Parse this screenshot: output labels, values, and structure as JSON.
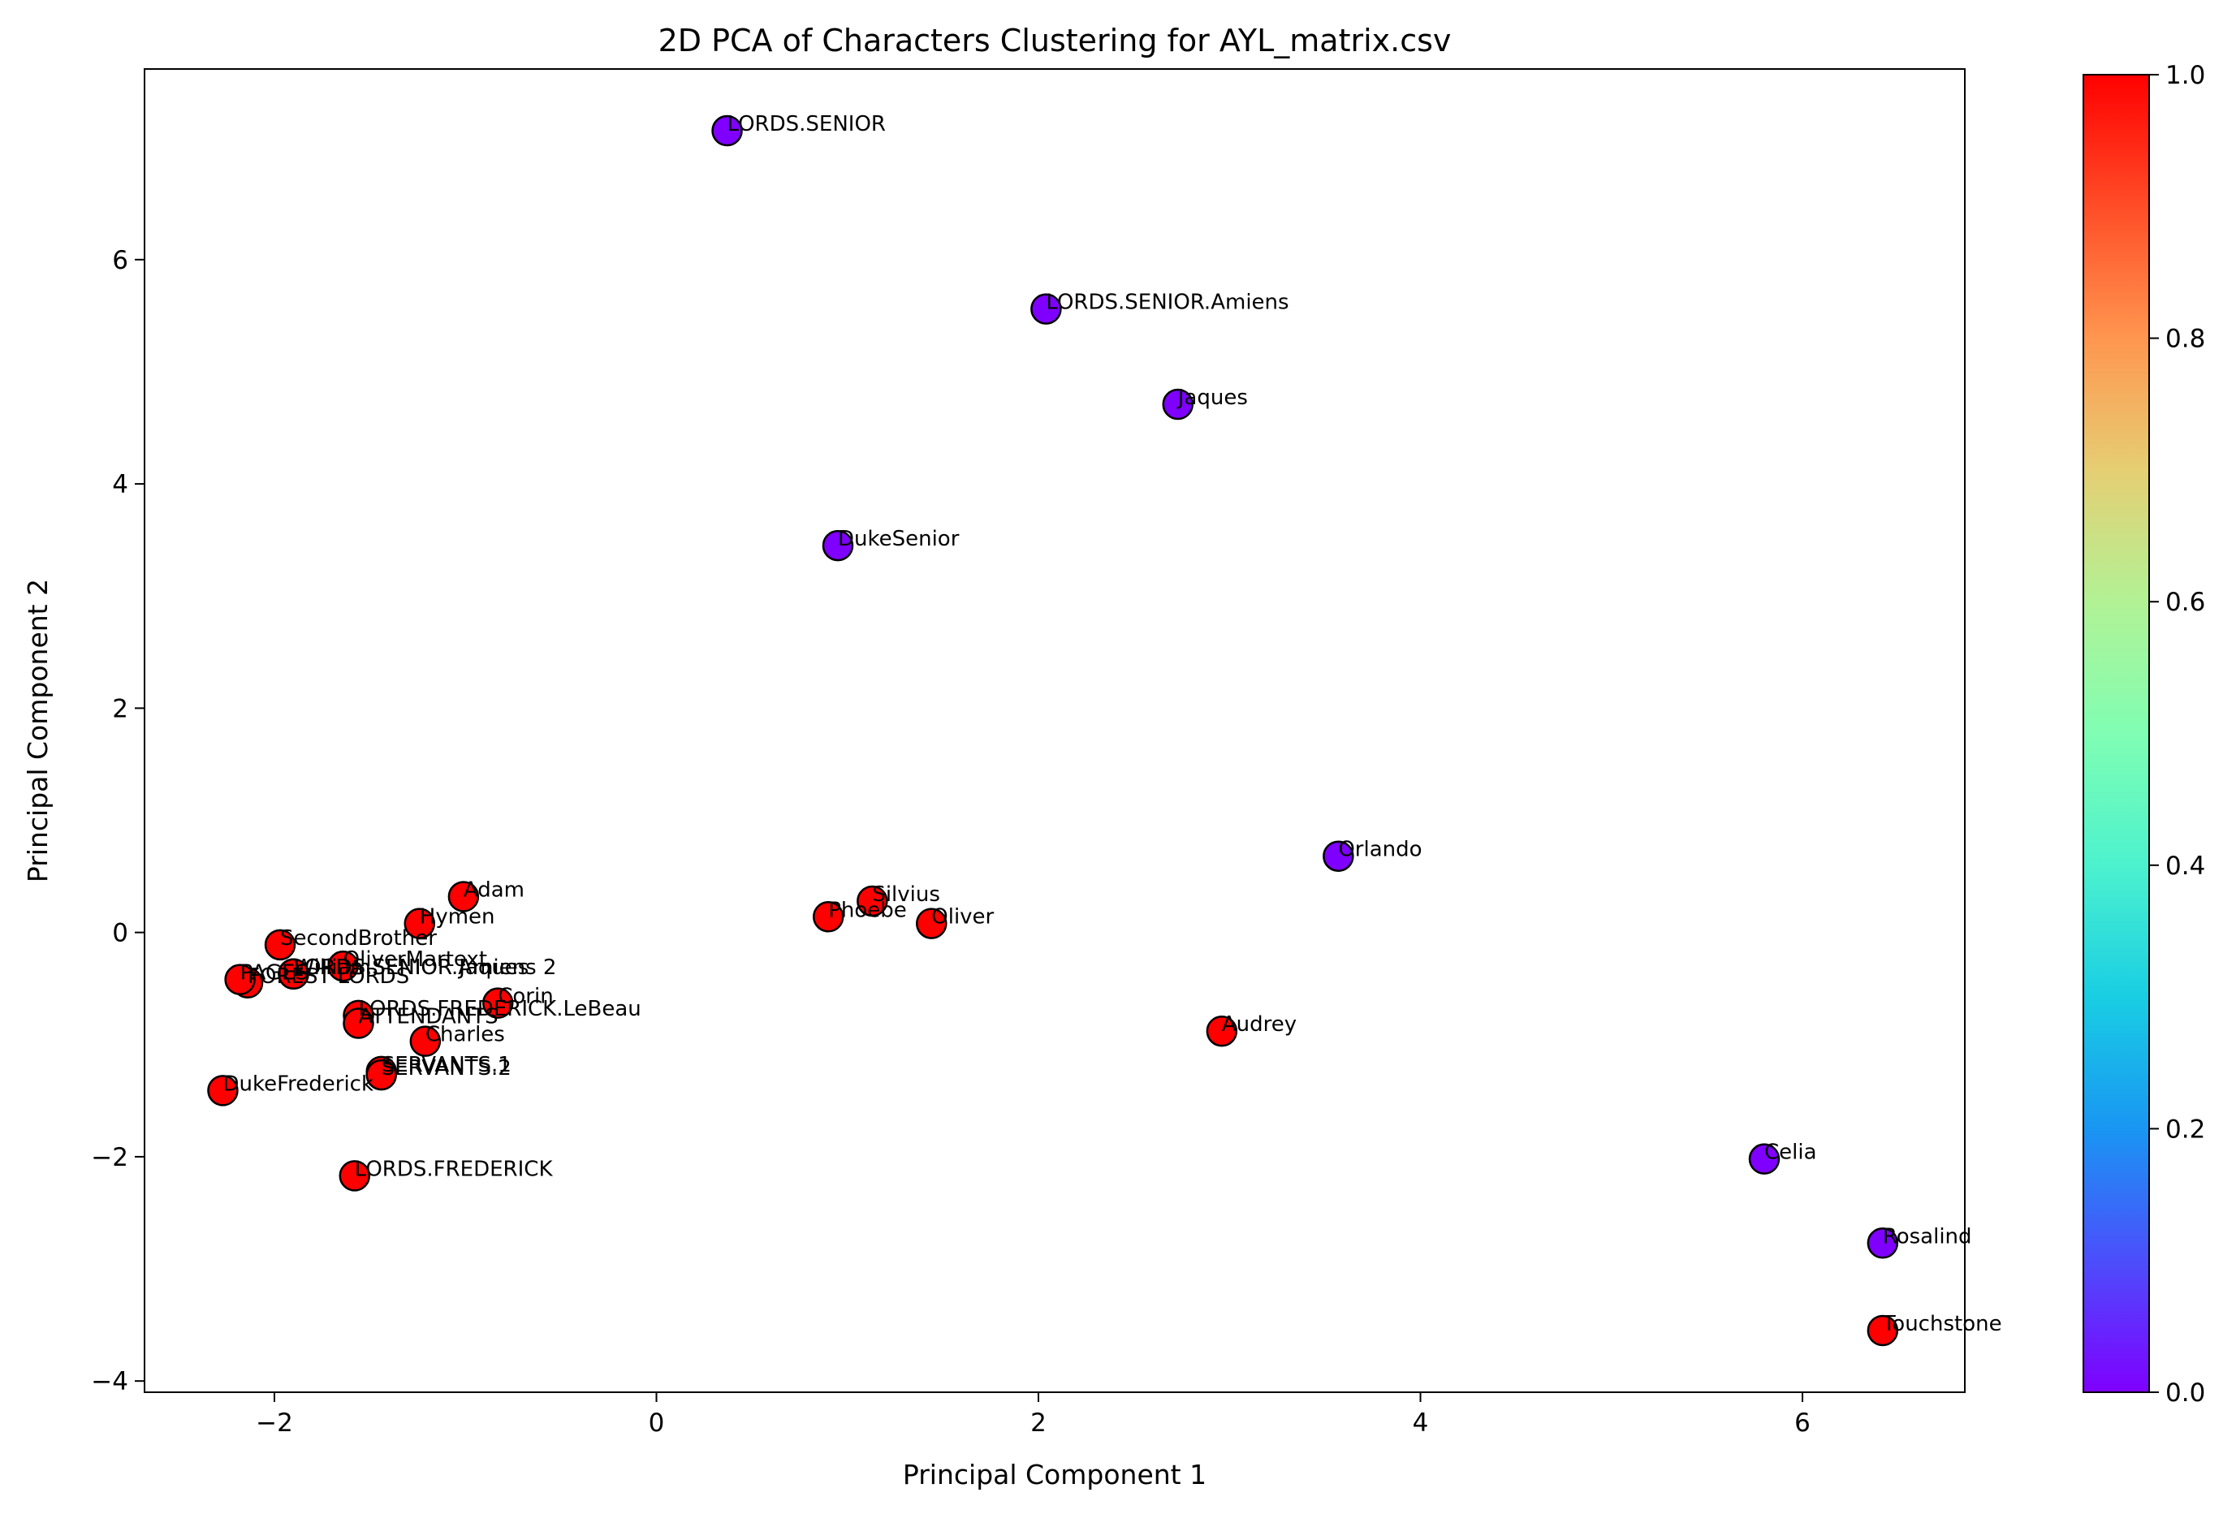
{
  "chart_data": {
    "type": "scatter",
    "title": "2D PCA of Characters Clustering for AYL_matrix.csv",
    "xlabel": "Principal Component 1",
    "ylabel": "Principal Component 2",
    "xlim": [
      -2.68,
      6.85
    ],
    "ylim": [
      -4.1,
      7.7
    ],
    "xticks": [
      -2,
      0,
      2,
      4,
      6
    ],
    "yticks": [
      -4,
      -2,
      0,
      2,
      4,
      6
    ],
    "grid": false,
    "colormap": "rainbow",
    "colorbar": {
      "min": 0.0,
      "max": 1.0,
      "ticks": [
        "0.0",
        "0.2",
        "0.4",
        "0.6",
        "0.8",
        "1.0"
      ]
    },
    "cluster_colors": {
      "0": "#7f00ff",
      "1": "#ff0000"
    },
    "points": [
      {
        "label": "LORDS.SENIOR",
        "x": 0.37,
        "y": 7.15,
        "cluster": 0
      },
      {
        "label": "LORDS.SENIOR.Amiens",
        "x": 2.04,
        "y": 5.56,
        "cluster": 0
      },
      {
        "label": "Jaques",
        "x": 2.73,
        "y": 4.71,
        "cluster": 0
      },
      {
        "label": "DukeSenior",
        "x": 0.95,
        "y": 3.45,
        "cluster": 0
      },
      {
        "label": "Orlando",
        "x": 3.57,
        "y": 0.68,
        "cluster": 0
      },
      {
        "label": "Celia",
        "x": 5.8,
        "y": -2.02,
        "cluster": 0
      },
      {
        "label": "Rosalind",
        "x": 6.42,
        "y": -2.77,
        "cluster": 0
      },
      {
        "label": "Touchstone",
        "x": 6.42,
        "y": -3.55,
        "cluster": 1
      },
      {
        "label": "Audrey",
        "x": 2.96,
        "y": -0.88,
        "cluster": 1
      },
      {
        "label": "Silvius",
        "x": 1.13,
        "y": 0.28,
        "cluster": 1
      },
      {
        "label": "Phoebe",
        "x": 0.9,
        "y": 0.14,
        "cluster": 1
      },
      {
        "label": "Oliver",
        "x": 1.44,
        "y": 0.08,
        "cluster": 1
      },
      {
        "label": "Adam",
        "x": -1.01,
        "y": 0.32,
        "cluster": 1
      },
      {
        "label": "Hymen",
        "x": -1.24,
        "y": 0.08,
        "cluster": 1
      },
      {
        "label": "SecondBrother",
        "x": -1.97,
        "y": -0.11,
        "cluster": 1
      },
      {
        "label": "OliverMartext",
        "x": -1.64,
        "y": -0.3,
        "cluster": 1
      },
      {
        "label": "LORDS.SENIOR Jaques",
        "x": -1.9,
        "y": -0.37,
        "cluster": 1
      },
      {
        "label": "William",
        "x": -1.9,
        "y": -0.37,
        "cluster": 1
      },
      {
        "label": "LORDS.SENIOR.Amiens 2",
        "x": -1.9,
        "y": -0.37,
        "cluster": 1
      },
      {
        "label": "FOREST LORDS",
        "x": -2.14,
        "y": -0.45,
        "cluster": 1
      },
      {
        "label": "PAGES",
        "x": -2.18,
        "y": -0.42,
        "cluster": 1
      },
      {
        "label": "Corin",
        "x": -0.83,
        "y": -0.63,
        "cluster": 1
      },
      {
        "label": "LORDS.FREDERICK.LeBeau",
        "x": -1.56,
        "y": -0.74,
        "cluster": 1
      },
      {
        "label": "ATTENDANTS",
        "x": -1.56,
        "y": -0.81,
        "cluster": 1
      },
      {
        "label": "Charles",
        "x": -1.21,
        "y": -0.97,
        "cluster": 1
      },
      {
        "label": "SERVANTS.1",
        "x": -1.44,
        "y": -1.24,
        "cluster": 1
      },
      {
        "label": "SERVANTS.2",
        "x": -1.44,
        "y": -1.27,
        "cluster": 1
      },
      {
        "label": "DukeFrederick",
        "x": -2.27,
        "y": -1.41,
        "cluster": 1
      },
      {
        "label": "LORDS.FREDERICK",
        "x": -1.58,
        "y": -2.17,
        "cluster": 1
      }
    ]
  }
}
